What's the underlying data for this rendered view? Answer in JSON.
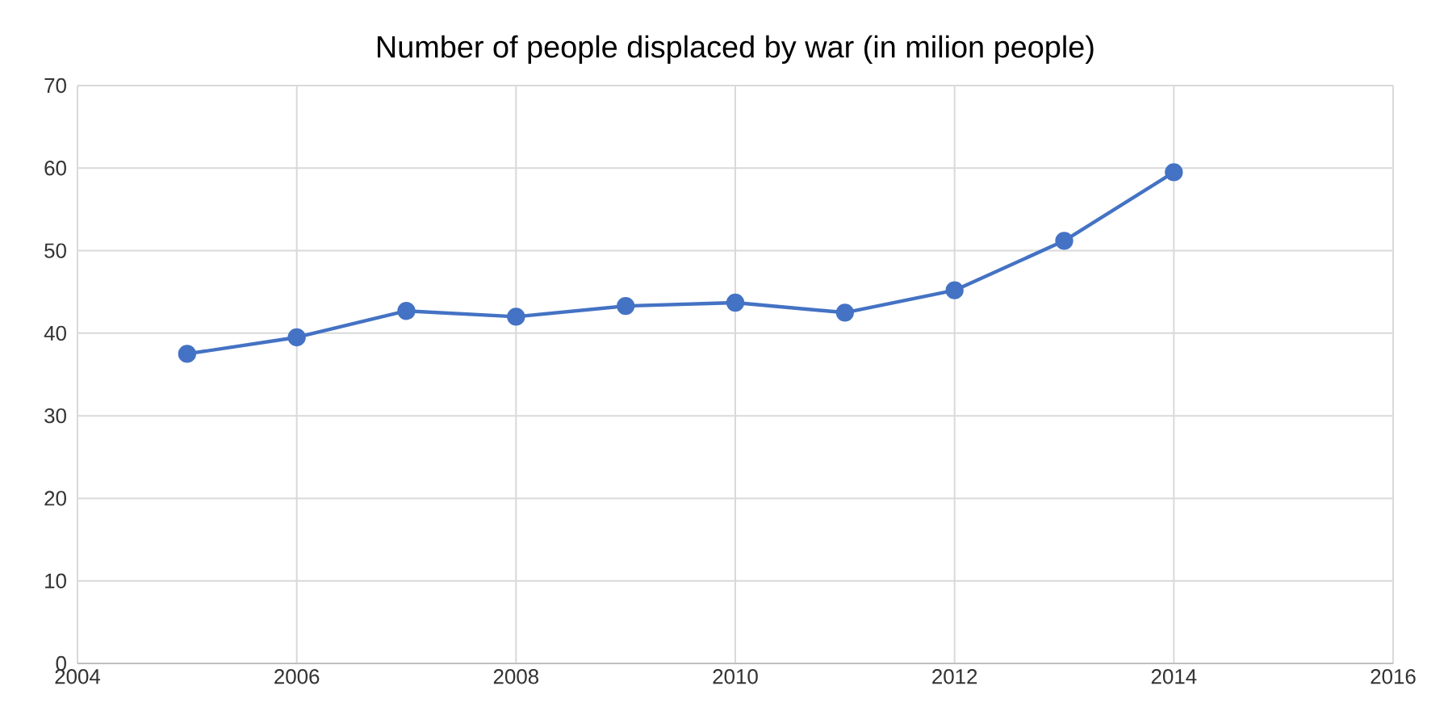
{
  "chart_data": {
    "type": "line",
    "title": "Number of people displaced by war (in milion people)",
    "x": [
      2005,
      2006,
      2007,
      2008,
      2009,
      2010,
      2011,
      2012,
      2013,
      2014
    ],
    "series": [
      {
        "color": "#4472c4",
        "values": [
          37.5,
          39.5,
          42.7,
          42.0,
          43.3,
          43.7,
          42.5,
          45.2,
          51.2,
          59.5
        ]
      }
    ],
    "xlim": [
      2004,
      2016
    ],
    "xticks": [
      2004,
      2006,
      2008,
      2010,
      2012,
      2014,
      2016
    ],
    "ylim": [
      0,
      70
    ],
    "yticks": [
      0,
      10,
      20,
      30,
      40,
      50,
      60,
      70
    ],
    "grid": true,
    "marker": "circle",
    "line_style": "solid"
  }
}
